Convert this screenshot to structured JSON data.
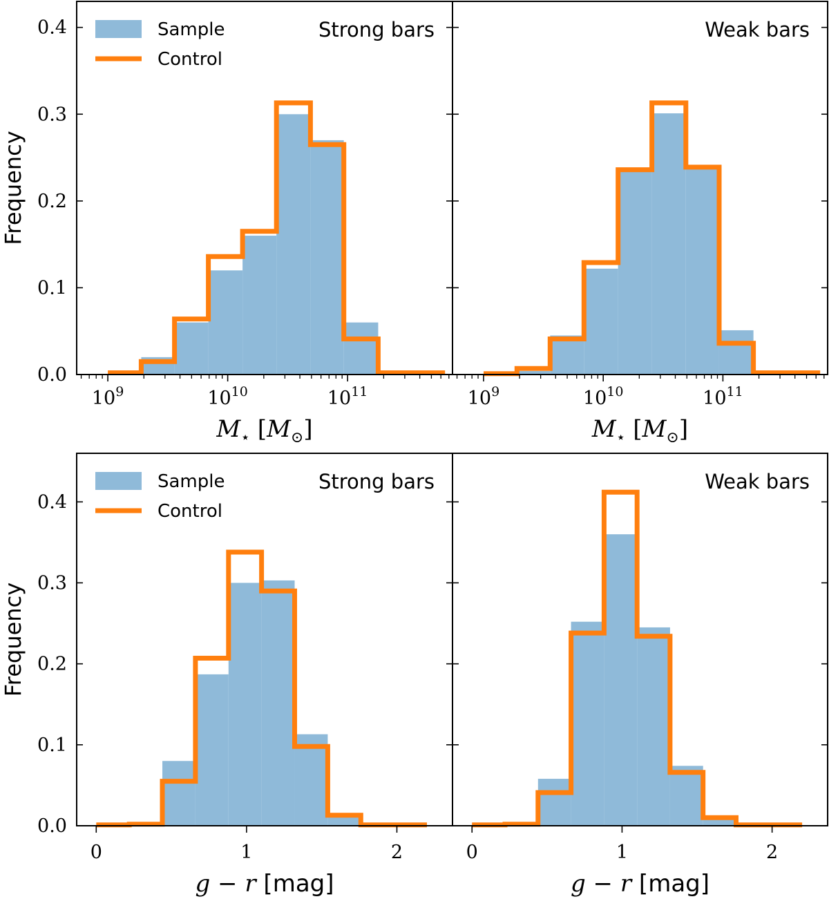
{
  "colors": {
    "sample": "#8fbad9",
    "control": "#ff7f0e",
    "axis": "#000000"
  },
  "chart_data": [
    {
      "type": "bar",
      "title": "Strong bars",
      "xlabel": "M_star [M_sun]",
      "ylabel": "Frequency",
      "xscale": "log",
      "xlim": [
        550000000.0,
        750000000000.0
      ],
      "ylim": [
        0.0,
        0.43
      ],
      "xticks": [
        1000000000.0,
        10000000000.0,
        100000000000.0
      ],
      "xtick_labels": [
        {
          "base": "10",
          "exp": "9"
        },
        {
          "base": "10",
          "exp": "10"
        },
        {
          "base": "10",
          "exp": "11"
        }
      ],
      "yticks": [
        "0.0",
        "0.1",
        "0.2",
        "0.3",
        "0.4"
      ],
      "bin_edges": [
        1000000000.0,
        1900000000.0,
        3600000000.0,
        6900000000.0,
        13300000000.0,
        25500000000.0,
        49000000000.0,
        93000000000.0,
        180000000000.0,
        340000000000.0,
        650000000000.0
      ],
      "series": [
        {
          "name": "Sample",
          "kind": "filled",
          "values": [
            0.0,
            0.02,
            0.06,
            0.12,
            0.16,
            0.3,
            0.27,
            0.06,
            0.0,
            0.0
          ]
        },
        {
          "name": "Control",
          "kind": "step",
          "values": [
            0.002,
            0.015,
            0.064,
            0.136,
            0.165,
            0.313,
            0.265,
            0.041,
            0.002,
            0.002
          ]
        }
      ],
      "legend": "top-left",
      "grid": false
    },
    {
      "type": "bar",
      "title": "Weak bars",
      "xlabel": "M_star [M_sun]",
      "ylabel": "",
      "xscale": "log",
      "xlim": [
        550000000.0,
        750000000000.0
      ],
      "ylim": [
        0.0,
        0.43
      ],
      "xticks": [
        1000000000.0,
        10000000000.0,
        100000000000.0
      ],
      "xtick_labels": [
        {
          "base": "10",
          "exp": "9"
        },
        {
          "base": "10",
          "exp": "10"
        },
        {
          "base": "10",
          "exp": "11"
        }
      ],
      "bin_edges": [
        1000000000.0,
        1900000000.0,
        3600000000.0,
        6900000000.0,
        13300000000.0,
        25500000000.0,
        49000000000.0,
        93000000000.0,
        180000000000.0,
        340000000000.0,
        650000000000.0
      ],
      "series": [
        {
          "name": "Sample",
          "kind": "filled",
          "values": [
            0.0,
            0.004,
            0.045,
            0.122,
            0.234,
            0.301,
            0.239,
            0.051,
            0.0,
            0.0
          ]
        },
        {
          "name": "Control",
          "kind": "step",
          "values": [
            0.001,
            0.007,
            0.041,
            0.129,
            0.236,
            0.313,
            0.239,
            0.036,
            0.002,
            0.002
          ]
        }
      ],
      "grid": false
    },
    {
      "type": "bar",
      "title": "Strong bars",
      "xlabel": "g - r [mag]",
      "ylabel": "Frequency",
      "xscale": "linear",
      "xlim": [
        -0.13,
        2.37
      ],
      "ylim": [
        0.0,
        0.46
      ],
      "xticks": [
        0,
        1,
        2
      ],
      "xtick_labels": [
        "0",
        "1",
        "2"
      ],
      "yticks": [
        "0.0",
        "0.1",
        "0.2",
        "0.3",
        "0.4"
      ],
      "bin_edges": [
        0.0,
        0.22,
        0.44,
        0.66,
        0.88,
        1.1,
        1.32,
        1.54,
        1.76,
        1.98,
        2.2
      ],
      "series": [
        {
          "name": "Sample",
          "kind": "filled",
          "values": [
            0.0,
            0.0,
            0.08,
            0.187,
            0.3,
            0.303,
            0.113,
            0.013,
            0.0,
            0.0
          ]
        },
        {
          "name": "Control",
          "kind": "step",
          "values": [
            0.001,
            0.002,
            0.055,
            0.207,
            0.338,
            0.29,
            0.098,
            0.013,
            0.001,
            0.001
          ]
        }
      ],
      "legend": "top-left",
      "grid": false
    },
    {
      "type": "bar",
      "title": "Weak bars",
      "xlabel": "g - r [mag]",
      "ylabel": "",
      "xscale": "linear",
      "xlim": [
        -0.13,
        2.37
      ],
      "ylim": [
        0.0,
        0.46
      ],
      "xticks": [
        0,
        1,
        2
      ],
      "xtick_labels": [
        "0",
        "1",
        "2"
      ],
      "bin_edges": [
        0.0,
        0.22,
        0.44,
        0.66,
        0.88,
        1.1,
        1.32,
        1.54,
        1.76,
        1.98,
        2.2
      ],
      "series": [
        {
          "name": "Sample",
          "kind": "filled",
          "values": [
            0.0,
            0.0,
            0.058,
            0.252,
            0.36,
            0.245,
            0.074,
            0.01,
            0.0,
            0.0
          ]
        },
        {
          "name": "Control",
          "kind": "step",
          "values": [
            0.001,
            0.002,
            0.041,
            0.238,
            0.412,
            0.234,
            0.066,
            0.01,
            0.001,
            0.001
          ]
        }
      ],
      "grid": false
    }
  ],
  "legend": {
    "sample_label": "Sample",
    "control_label": "Control"
  },
  "labels": {
    "frequency": "Frequency",
    "mass_symbol": "M",
    "mass_sub": "⋆",
    "mass_unit_open": "[",
    "mass_unit_sym": "M",
    "mass_unit_sub": "⊙",
    "mass_unit_close": "]",
    "color_g": "g",
    "color_minus": "−",
    "color_r": "r",
    "color_unit": "[mag]"
  }
}
